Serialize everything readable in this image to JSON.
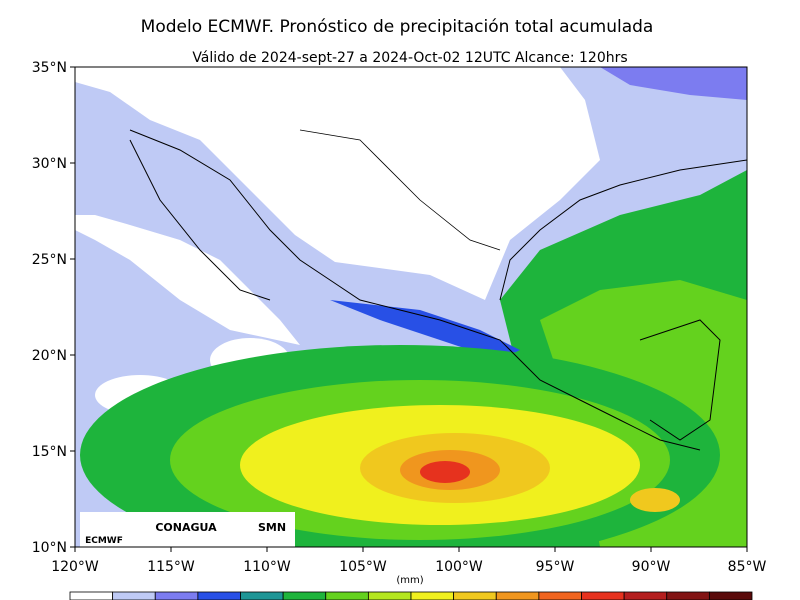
{
  "title": "Modelo ECMWF. Pronóstico de precipitación total acumulada",
  "subtitle": "Válido de 2024-sept-27 a 2024-Oct-02 12UTC   Alcance: 120hrs",
  "map": {
    "xlim": [
      -120,
      -85
    ],
    "ylim": [
      10,
      35
    ],
    "xticks": [
      {
        "value": -120,
        "label": "120°W"
      },
      {
        "value": -115,
        "label": "115°W"
      },
      {
        "value": -110,
        "label": "110°W"
      },
      {
        "value": -105,
        "label": "105°W"
      },
      {
        "value": -100,
        "label": "100°W"
      },
      {
        "value": -95,
        "label": "95°W"
      },
      {
        "value": -90,
        "label": "90°W"
      },
      {
        "value": -85,
        "label": "85°W"
      }
    ],
    "yticks": [
      {
        "value": 10,
        "label": "10°N"
      },
      {
        "value": 15,
        "label": "15°N"
      },
      {
        "value": 20,
        "label": "20°N"
      },
      {
        "value": 25,
        "label": "25°N"
      },
      {
        "value": 30,
        "label": "30°N"
      },
      {
        "value": 35,
        "label": "35°N"
      }
    ]
  },
  "colorbar": {
    "label": "(mm)",
    "colors": [
      "#ffffff",
      "#bfcaf5",
      "#7c7cf0",
      "#2850e6",
      "#1e9696",
      "#1eb43c",
      "#64d21e",
      "#b4e61e",
      "#f0f01e",
      "#f0c81e",
      "#f0961e",
      "#f0641e",
      "#e6321e",
      "#b41e1e",
      "#821414",
      "#5a0a0a"
    ]
  },
  "logos": {
    "ecmwf": "ECMWF",
    "conagua": "CONAGUA",
    "smn": "SMN"
  }
}
